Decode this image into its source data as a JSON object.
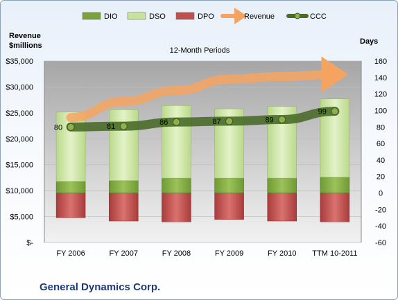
{
  "legend": [
    {
      "key": "dio",
      "label": "DIO",
      "color": "#7aa23a"
    },
    {
      "key": "dso",
      "label": "DSO",
      "color": "#c9e29a"
    },
    {
      "key": "dpo",
      "label": "DPO",
      "color": "#c0504d"
    },
    {
      "key": "revenue",
      "label": "Revenue",
      "color": "#f4a460"
    },
    {
      "key": "ccc",
      "label": "CCC",
      "color": "#4a6b2a"
    }
  ],
  "left_axis_title_1": "Revenue",
  "left_axis_title_2": "$millions",
  "right_axis_title": "Days",
  "subtitle": "12-Month Periods",
  "company": "General Dynamics Corp.",
  "left_ticks": [
    "$35,000",
    "$30,000",
    "$25,000",
    "$20,000",
    "$15,000",
    "$10,000",
    "$5,000",
    "$-"
  ],
  "right_ticks": [
    "160",
    "140",
    "120",
    "100",
    "80",
    "60",
    "40",
    "20",
    "0",
    "-20",
    "-40",
    "-60"
  ],
  "chart_data": {
    "type": "bar",
    "title": "12-Month Periods",
    "categories": [
      "FY 2006",
      "FY 2007",
      "FY 2008",
      "FY 2009",
      "FY 2010",
      "TTM 10-2011"
    ],
    "left_axis": {
      "label": "Revenue $millions",
      "range": [
        0,
        35000
      ]
    },
    "right_axis": {
      "label": "Days",
      "range": [
        -60,
        160
      ]
    },
    "series": [
      {
        "name": "DIO",
        "type": "stacked-bar",
        "axis": "right",
        "values": [
          14,
          15,
          18,
          18,
          18,
          19
        ]
      },
      {
        "name": "DSO",
        "type": "stacked-bar",
        "axis": "right",
        "values": [
          84,
          86,
          88,
          84,
          87,
          95
        ]
      },
      {
        "name": "DPO",
        "type": "stacked-bar-negative",
        "axis": "right",
        "values": [
          30,
          34,
          35,
          32,
          34,
          35
        ]
      },
      {
        "name": "Revenue",
        "type": "line",
        "axis": "left",
        "values": [
          24100,
          27200,
          29300,
          31500,
          32000,
          32400
        ]
      },
      {
        "name": "CCC",
        "type": "line",
        "axis": "right",
        "values": [
          80,
          81,
          86,
          87,
          89,
          99
        ],
        "labels": [
          "80",
          "81",
          "86",
          "87",
          "89",
          "99"
        ]
      }
    ]
  }
}
